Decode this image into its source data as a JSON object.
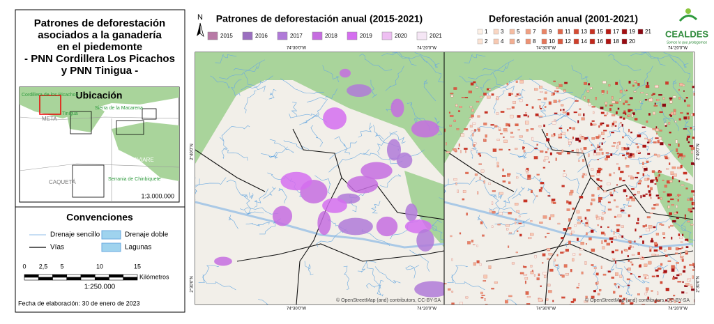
{
  "panel": {
    "title_lines": [
      "Patrones de deforestación",
      "asociados a la ganadería",
      "en el piedemonte",
      "- PNN Cordillera Los Picachos",
      "y PNN Tinigua -"
    ],
    "location": {
      "title": "Ubicación",
      "labels": [
        "Cordillera de los Picachos",
        "Tinigua",
        "META",
        "Sierra de la Macarena",
        "GUAVIARE",
        "CAQUETÁ",
        "Serrania de Chinbiquete"
      ],
      "scale": "1:3.000.000"
    },
    "conventions": {
      "title": "Convenciones",
      "items": [
        "Drenaje sencillo",
        "Drenaje doble",
        "Vías",
        "Lagunas"
      ]
    },
    "scale_bar": {
      "ticks": [
        "0",
        "2,5",
        "5",
        "10",
        "15"
      ],
      "unit": "Kilómetros",
      "ratio": "1:250.000"
    },
    "date": "Fecha de elaboración: 30 de enero de 2023"
  },
  "north": "N",
  "maps": [
    {
      "title": "Patrones de deforestación anual (2015-2021)",
      "legend": [
        {
          "label": "2015",
          "color": "#b87aa6"
        },
        {
          "label": "2016",
          "color": "#9b6fc0"
        },
        {
          "label": "2017",
          "color": "#b07ad8"
        },
        {
          "label": "2018",
          "color": "#c66de0"
        },
        {
          "label": "2019",
          "color": "#d56ff0"
        },
        {
          "label": "2020",
          "color": "#eebff2"
        },
        {
          "label": "2021",
          "color": "#f5e6f5"
        }
      ]
    },
    {
      "title": "Deforestación anual (2001-2021)",
      "legend": [
        {
          "label": "1",
          "color": "#fdf0e6"
        },
        {
          "label": "2",
          "color": "#fbe3d4"
        },
        {
          "label": "3",
          "color": "#f9d6c3"
        },
        {
          "label": "4",
          "color": "#f7c9b2"
        },
        {
          "label": "5",
          "color": "#f5bca2"
        },
        {
          "label": "6",
          "color": "#f2ae92"
        },
        {
          "label": "7",
          "color": "#efa083"
        },
        {
          "label": "8",
          "color": "#ec9274"
        },
        {
          "label": "9",
          "color": "#e88466"
        },
        {
          "label": "10",
          "color": "#e47659"
        },
        {
          "label": "11",
          "color": "#df684c"
        },
        {
          "label": "12",
          "color": "#da5a40"
        },
        {
          "label": "13",
          "color": "#d44c35"
        },
        {
          "label": "14",
          "color": "#ce3f2b"
        },
        {
          "label": "15",
          "color": "#c73222"
        },
        {
          "label": "16",
          "color": "#c0271b"
        },
        {
          "label": "17",
          "color": "#b81d16"
        },
        {
          "label": "18",
          "color": "#ae1513"
        },
        {
          "label": "19",
          "color": "#a30f12"
        },
        {
          "label": "20",
          "color": "#970b12"
        },
        {
          "label": "21",
          "color": "#8a0812"
        }
      ]
    }
  ],
  "coords": {
    "lon": [
      "74°30'0\"W",
      "74°20'0\"W"
    ],
    "lat": [
      "2°40'0\"N",
      "2°30'0\"N"
    ]
  },
  "attribution": "© OpenStreetMap (and) contributors, CC-BY-SA",
  "logo": {
    "name": "CEALDES",
    "tagline": "Somos lo que protegemos"
  }
}
